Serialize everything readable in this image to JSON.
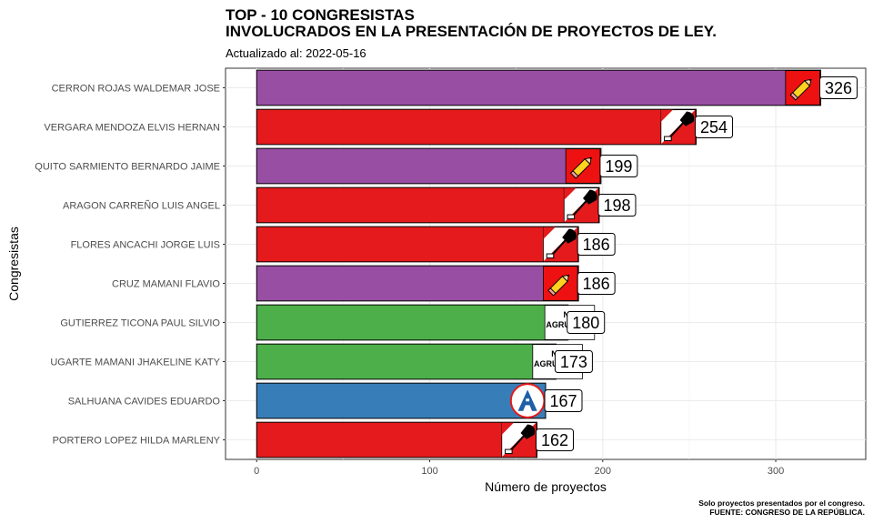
{
  "header": {
    "title_line1": "TOP - 10 CONGRESISTAS",
    "title_line2": "INVOLUCRADOS EN LA PRESENTACIÓN DE PROYECTOS DE LEY.",
    "subtitle": "Actualizado al: 2022-05-16"
  },
  "caption": {
    "line1": "Solo proyectos presentados por el congreso.",
    "line2": "FUENTE: CONGRESO DE LA REPÚBLICA."
  },
  "colors": {
    "purple": "#984ea3",
    "red": "#e41a1c",
    "green": "#4daf4a",
    "blue": "#377eb8",
    "grid": "#ebebeb",
    "axis_text": "#4d4d4d"
  },
  "chart_data": {
    "type": "bar",
    "orientation": "horizontal",
    "title": "TOP - 10 CONGRESISTAS INVOLUCRADOS EN LA PRESENTACIÓN DE PROYECTOS DE LEY.",
    "xlabel": "Número de proyectos",
    "ylabel": "Congresistas",
    "xlim": [
      -18,
      352
    ],
    "xticks": [
      0,
      100,
      200,
      300
    ],
    "grid": true,
    "logo_text_no_agrupado": [
      "NO",
      "AGRUPADO"
    ],
    "bars": [
      {
        "name": "CERRON ROJAS WALDEMAR JOSE",
        "value": 326,
        "color": "#984ea3",
        "logo": "pencil"
      },
      {
        "name": "VERGARA MENDOZA ELVIS HERNAN",
        "value": 254,
        "color": "#e41a1c",
        "logo": "shovel"
      },
      {
        "name": "QUITO SARMIENTO BERNARDO JAIME",
        "value": 199,
        "color": "#984ea3",
        "logo": "pencil"
      },
      {
        "name": "ARAGON CARREÑO LUIS ANGEL",
        "value": 198,
        "color": "#e41a1c",
        "logo": "shovel"
      },
      {
        "name": "FLORES ANCACHI JORGE LUIS",
        "value": 186,
        "color": "#e41a1c",
        "logo": "shovel"
      },
      {
        "name": "CRUZ MAMANI FLAVIO",
        "value": 186,
        "color": "#984ea3",
        "logo": "pencil"
      },
      {
        "name": "GUTIERREZ TICONA PAUL SILVIO",
        "value": 180,
        "color": "#4daf4a",
        "logo": "no-agrupado"
      },
      {
        "name": "UGARTE MAMANI JHAKELINE KATY",
        "value": 173,
        "color": "#4daf4a",
        "logo": "no-agrupado"
      },
      {
        "name": "SALHUANA CAVIDES EDUARDO",
        "value": 167,
        "color": "#377eb8",
        "logo": "app"
      },
      {
        "name": "PORTERO LOPEZ HILDA MARLENY",
        "value": 162,
        "color": "#e41a1c",
        "logo": "shovel"
      }
    ]
  }
}
